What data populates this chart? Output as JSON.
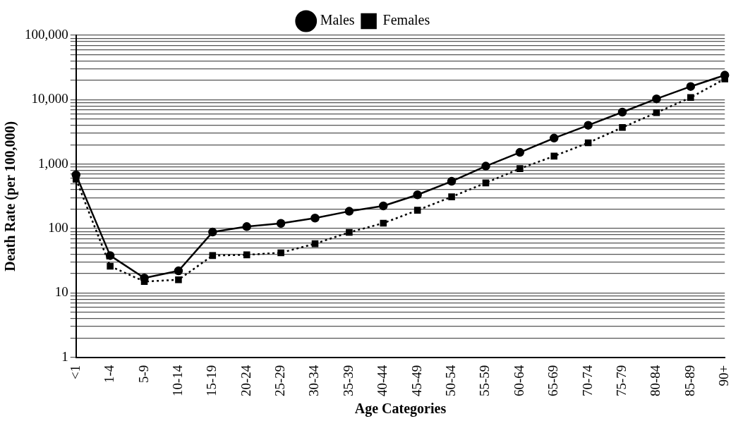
{
  "chart_data": {
    "type": "line",
    "xlabel": "Age Categories",
    "ylabel": "Death Rate (per 100,000)",
    "categories": [
      "<1",
      "1-4",
      "5-9",
      "10-14",
      "15-19",
      "20-24",
      "25-29",
      "30-34",
      "35-39",
      "40-44",
      "45-49",
      "50-54",
      "55-59",
      "60-64",
      "65-69",
      "70-74",
      "75-79",
      "80-84",
      "85-89",
      "90+"
    ],
    "series": [
      {
        "name": "Males",
        "color": "#000000",
        "marker": "circle",
        "line_style": "solid",
        "values": [
          680,
          38,
          17,
          22,
          88,
          107,
          120,
          145,
          185,
          224,
          333,
          540,
          930,
          1520,
          2530,
          4000,
          6400,
          10300,
          16000,
          24000
        ]
      },
      {
        "name": "Females",
        "color": "#000000",
        "marker": "square",
        "line_style": "dotted",
        "values": [
          580,
          26,
          15,
          16,
          38,
          39,
          42,
          58,
          87,
          121,
          192,
          310,
          510,
          850,
          1330,
          2140,
          3700,
          6300,
          10800,
          21000
        ]
      }
    ],
    "log": "y",
    "ylim": [
      1,
      100000
    ],
    "yticks": [
      {
        "value": 1,
        "label": "1"
      },
      {
        "value": 2,
        "label": null
      },
      {
        "value": 3,
        "label": null
      },
      {
        "value": 4,
        "label": null
      },
      {
        "value": 5,
        "label": null
      },
      {
        "value": 6,
        "label": null
      },
      {
        "value": 7,
        "label": null
      },
      {
        "value": 8,
        "label": null
      },
      {
        "value": 9,
        "label": null
      },
      {
        "value": 10,
        "label": "10"
      },
      {
        "value": 20,
        "label": null
      },
      {
        "value": 30,
        "label": null
      },
      {
        "value": 40,
        "label": null
      },
      {
        "value": 50,
        "label": null
      },
      {
        "value": 60,
        "label": null
      },
      {
        "value": 70,
        "label": null
      },
      {
        "value": 80,
        "label": null
      },
      {
        "value": 90,
        "label": null
      },
      {
        "value": 100,
        "label": "100"
      },
      {
        "value": 200,
        "label": null
      },
      {
        "value": 300,
        "label": null
      },
      {
        "value": 400,
        "label": null
      },
      {
        "value": 500,
        "label": null
      },
      {
        "value": 600,
        "label": null
      },
      {
        "value": 700,
        "label": null
      },
      {
        "value": 800,
        "label": null
      },
      {
        "value": 900,
        "label": null
      },
      {
        "value": 1000,
        "label": "1,000"
      },
      {
        "value": 2000,
        "label": null
      },
      {
        "value": 3000,
        "label": null
      },
      {
        "value": 4000,
        "label": null
      },
      {
        "value": 5000,
        "label": null
      },
      {
        "value": 6000,
        "label": null
      },
      {
        "value": 7000,
        "label": null
      },
      {
        "value": 8000,
        "label": null
      },
      {
        "value": 9000,
        "label": null
      },
      {
        "value": 10000,
        "label": "10,000"
      },
      {
        "value": 20000,
        "label": null
      },
      {
        "value": 30000,
        "label": null
      },
      {
        "value": 40000,
        "label": null
      },
      {
        "value": 50000,
        "label": null
      },
      {
        "value": 60000,
        "label": null
      },
      {
        "value": 70000,
        "label": null
      },
      {
        "value": 80000,
        "label": null
      },
      {
        "value": 90000,
        "label": null
      },
      {
        "value": 100000,
        "label": "100,000"
      }
    ],
    "grid": "y",
    "legend": "top"
  }
}
